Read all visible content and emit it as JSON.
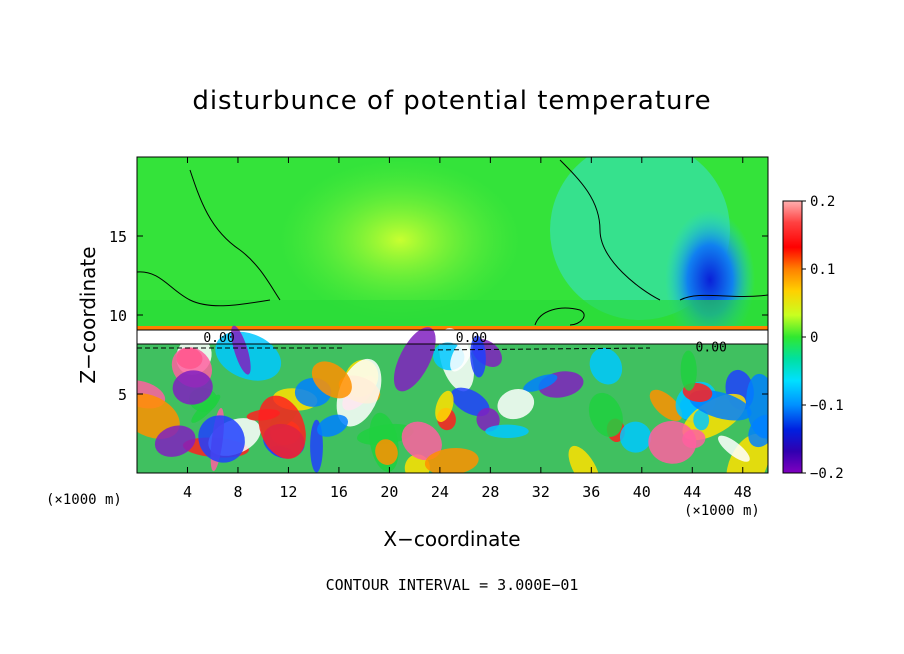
{
  "chart_data": {
    "type": "heatmap",
    "title": "disturbunce of potential temperature",
    "xlabel": "X−coordinate",
    "ylabel": "Z−coordinate",
    "x_unit_left": "(×1000 m)",
    "x_unit_right": "(×1000 m)",
    "note": "CONTOUR INTERVAL = 3.000E−01",
    "xlim": [
      0,
      50
    ],
    "ylim": [
      0,
      20
    ],
    "xticks": [
      4,
      8,
      12,
      16,
      20,
      24,
      28,
      32,
      36,
      40,
      44,
      48
    ],
    "xtick_labels": [
      "4",
      "8",
      "12",
      "16",
      "20",
      "24",
      "28",
      "32",
      "36",
      "40",
      "44",
      "48"
    ],
    "yticks": [
      5,
      10,
      15
    ],
    "ytick_labels": [
      "5",
      "10",
      "15"
    ],
    "colorbar": {
      "range": [
        -0.2,
        0.2
      ],
      "ticks": [
        0.2,
        0.1,
        0,
        -0.1,
        -0.2
      ],
      "tick_labels": [
        "0.2",
        "0.1",
        "0",
        "−0.1",
        "−0.2"
      ]
    },
    "contour_labels": [
      {
        "text": "0.00",
        "x": 6.5,
        "y": 8.6
      },
      {
        "text": "0.00",
        "x": 26.5,
        "y": 8.6
      },
      {
        "text": "0.00",
        "x": 45.5,
        "y": 8.0
      }
    ],
    "colors": {
      "background_upper": "#34e33a",
      "background_lower": "#4cd04a",
      "cool": "#1a9ae8",
      "warm": "#f03a20"
    }
  }
}
